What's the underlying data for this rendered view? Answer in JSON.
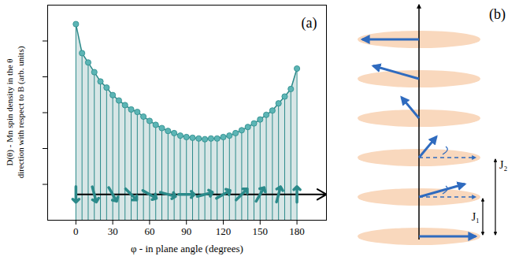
{
  "chart_data": {
    "type": "line",
    "x": [
      0,
      5,
      10,
      15,
      20,
      25,
      30,
      35,
      40,
      45,
      50,
      55,
      60,
      65,
      70,
      75,
      80,
      85,
      90,
      95,
      100,
      105,
      110,
      115,
      120,
      125,
      130,
      135,
      140,
      145,
      150,
      155,
      160,
      165,
      170,
      175,
      180
    ],
    "values": [
      5.47,
      4.66,
      4.4,
      4.13,
      3.87,
      3.7,
      3.49,
      3.34,
      3.21,
      3.09,
      3.02,
      2.89,
      2.77,
      2.66,
      2.57,
      2.49,
      2.43,
      2.36,
      2.32,
      2.3,
      2.28,
      2.26,
      2.28,
      2.28,
      2.32,
      2.36,
      2.43,
      2.51,
      2.6,
      2.7,
      2.81,
      2.94,
      3.06,
      3.26,
      3.45,
      3.66,
      4.23
    ],
    "color": "#2b8a8a",
    "marker": "circle",
    "xlim": [
      -23,
      204
    ],
    "ylim": [
      0,
      6
    ],
    "xticks": [
      0,
      30,
      60,
      90,
      120,
      150,
      180
    ],
    "yticks": [
      1,
      2,
      3,
      4,
      5
    ],
    "tick_labels": "x",
    "grid": false,
    "x_label": "φ - in plane angle (degrees)",
    "y_label": "D(θ) - Mn spin density in the θ direction with respect to B (arb. units)",
    "annotations": [
      "(a)"
    ],
    "spin_arrows": {
      "phi": [
        0,
        15,
        30,
        45,
        60,
        75,
        90,
        105,
        120,
        135,
        150,
        165,
        180
      ],
      "y": 0.72
    }
  },
  "diagram": {
    "label": "(b)",
    "couplings": [
      "J₁",
      "J₂"
    ]
  }
}
